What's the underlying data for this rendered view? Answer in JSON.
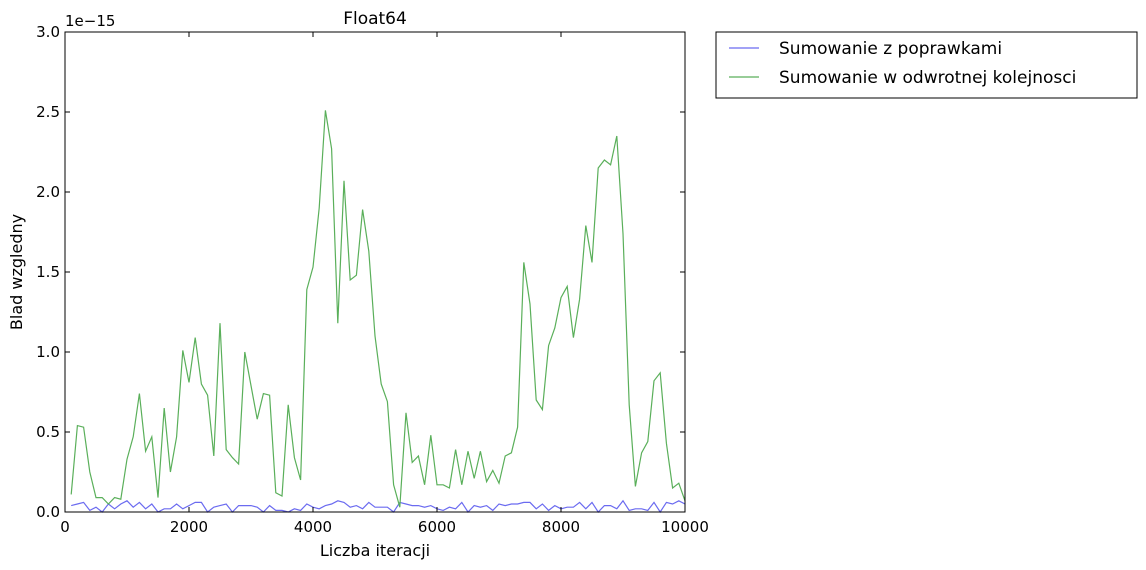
{
  "chart_data": {
    "type": "line",
    "title": "Float64",
    "xlabel": "Liczba iteracji",
    "ylabel": "Blad wzgledny",
    "offset_text": "1e−15",
    "xlim": [
      0,
      10000
    ],
    "ylim": [
      0,
      3.0
    ],
    "xticks": [
      0,
      2000,
      4000,
      6000,
      8000,
      10000
    ],
    "xtick_labels": [
      "0",
      "2000",
      "4000",
      "6000",
      "8000",
      "10000"
    ],
    "yticks": [
      0,
      0.5,
      1.0,
      1.5,
      2.0,
      2.5,
      3.0
    ],
    "ytick_labels": [
      "0.0",
      "0.5",
      "1.0",
      "1.5",
      "2.0",
      "2.5",
      "3.0"
    ],
    "grid": false,
    "legend_position": "outside-top-right",
    "x": [
      100,
      200,
      300,
      400,
      500,
      600,
      700,
      800,
      900,
      1000,
      1100,
      1200,
      1300,
      1400,
      1500,
      1600,
      1700,
      1800,
      1900,
      2000,
      2100,
      2200,
      2300,
      2400,
      2500,
      2600,
      2700,
      2800,
      2900,
      3000,
      3100,
      3200,
      3300,
      3400,
      3500,
      3600,
      3700,
      3800,
      3900,
      4000,
      4100,
      4200,
      4300,
      4400,
      4500,
      4600,
      4700,
      4800,
      4900,
      5000,
      5100,
      5200,
      5300,
      5400,
      5500,
      5600,
      5700,
      5800,
      5900,
      6000,
      6100,
      6200,
      6300,
      6400,
      6500,
      6600,
      6700,
      6800,
      6900,
      7000,
      7100,
      7200,
      7300,
      7400,
      7500,
      7600,
      7700,
      7800,
      7900,
      8000,
      8100,
      8200,
      8300,
      8400,
      8500,
      8600,
      8700,
      8800,
      8900,
      9000,
      9100,
      9200,
      9300,
      9400,
      9500,
      9600,
      9700,
      9800,
      9900,
      10000
    ],
    "series": [
      {
        "name": "Sumowanie z poprawkami",
        "color": "#6b6bf0",
        "values": [
          0.04,
          0.05,
          0.06,
          0.01,
          0.03,
          0.0,
          0.05,
          0.02,
          0.05,
          0.07,
          0.03,
          0.06,
          0.02,
          0.05,
          0.0,
          0.02,
          0.02,
          0.05,
          0.02,
          0.04,
          0.06,
          0.06,
          0.0,
          0.03,
          0.04,
          0.05,
          0.0,
          0.04,
          0.04,
          0.04,
          0.03,
          0.0,
          0.04,
          0.01,
          0.01,
          0.0,
          0.02,
          0.01,
          0.05,
          0.03,
          0.02,
          0.04,
          0.05,
          0.07,
          0.06,
          0.03,
          0.04,
          0.02,
          0.06,
          0.03,
          0.03,
          0.03,
          0.0,
          0.06,
          0.05,
          0.04,
          0.04,
          0.03,
          0.04,
          0.02,
          0.01,
          0.03,
          0.02,
          0.06,
          0.0,
          0.04,
          0.03,
          0.04,
          0.01,
          0.05,
          0.04,
          0.05,
          0.05,
          0.06,
          0.06,
          0.02,
          0.05,
          0.01,
          0.04,
          0.02,
          0.03,
          0.03,
          0.06,
          0.02,
          0.06,
          0.0,
          0.04,
          0.04,
          0.02,
          0.07,
          0.01,
          0.02,
          0.02,
          0.01,
          0.06,
          0.0,
          0.06,
          0.05,
          0.07,
          0.05
        ]
      },
      {
        "name": "Sumowanie w odwrotnej kolejnosci",
        "color": "#5aaf5a",
        "values": [
          0.11,
          0.54,
          0.53,
          0.25,
          0.09,
          0.09,
          0.05,
          0.09,
          0.08,
          0.33,
          0.47,
          0.74,
          0.38,
          0.47,
          0.09,
          0.65,
          0.25,
          0.47,
          1.01,
          0.81,
          1.09,
          0.8,
          0.73,
          0.35,
          1.18,
          0.39,
          0.34,
          0.3,
          1.0,
          0.79,
          0.58,
          0.74,
          0.73,
          0.12,
          0.1,
          0.67,
          0.34,
          0.2,
          1.39,
          1.53,
          1.9,
          2.51,
          2.27,
          1.18,
          2.07,
          1.45,
          1.48,
          1.89,
          1.63,
          1.1,
          0.8,
          0.69,
          0.17,
          0.03,
          0.62,
          0.31,
          0.35,
          0.17,
          0.48,
          0.17,
          0.17,
          0.15,
          0.39,
          0.17,
          0.38,
          0.21,
          0.38,
          0.19,
          0.26,
          0.18,
          0.35,
          0.37,
          0.53,
          1.56,
          1.3,
          0.7,
          0.64,
          1.04,
          1.15,
          1.34,
          1.41,
          1.09,
          1.33,
          1.79,
          1.56,
          2.15,
          2.2,
          2.17,
          2.35,
          1.74,
          0.67,
          0.16,
          0.37,
          0.44,
          0.82,
          0.87,
          0.43,
          0.15,
          0.18,
          0.07
        ]
      }
    ]
  }
}
